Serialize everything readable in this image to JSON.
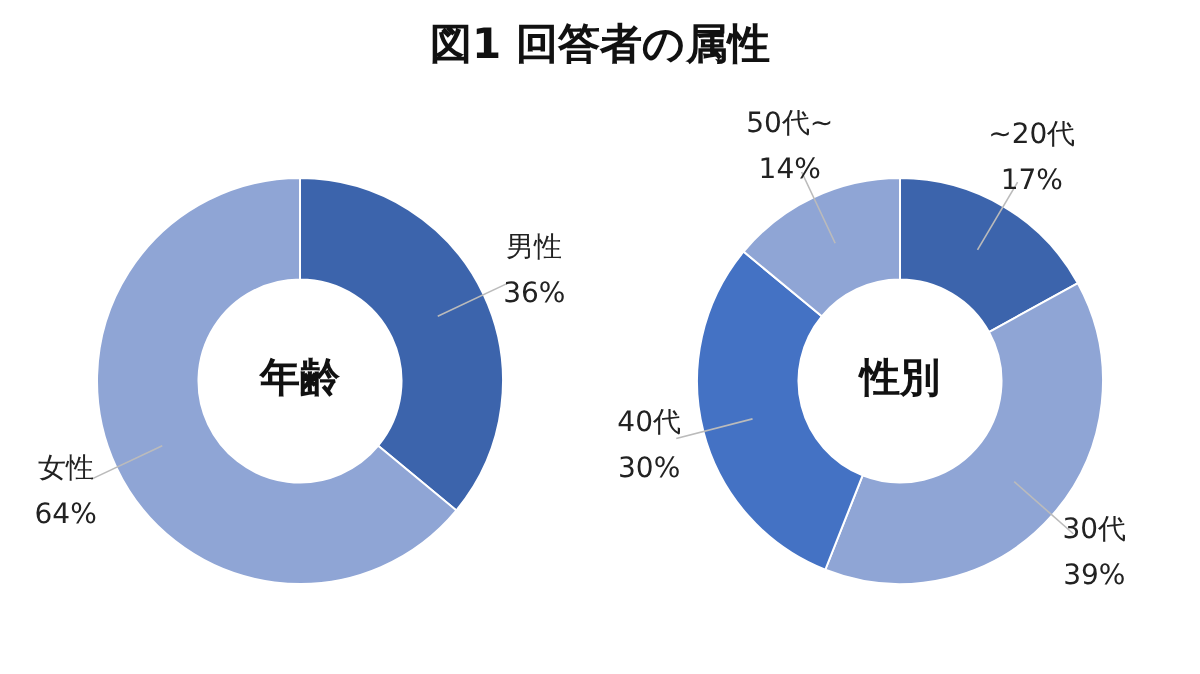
{
  "chart_data": [
    {
      "type": "donut",
      "title": "年齢",
      "annotations": [
        "図1 回答者の属性"
      ],
      "categories": [
        "男性",
        "女性"
      ],
      "values": [
        36,
        64
      ],
      "value_labels": [
        "36%",
        "64%"
      ],
      "colors": [
        "#3c64ac",
        "#8fa5d5"
      ],
      "legend": false
    },
    {
      "type": "donut",
      "title": "性別",
      "categories": [
        "~20代",
        "30代",
        "40代",
        "50代~"
      ],
      "values": [
        17,
        39,
        30,
        14
      ],
      "value_labels": [
        "17%",
        "39%",
        "30%",
        "14%"
      ],
      "colors": [
        "#3c64ac",
        "#8fa5d5",
        "#4472c4",
        "#8fa5d5"
      ],
      "legend": false
    }
  ]
}
